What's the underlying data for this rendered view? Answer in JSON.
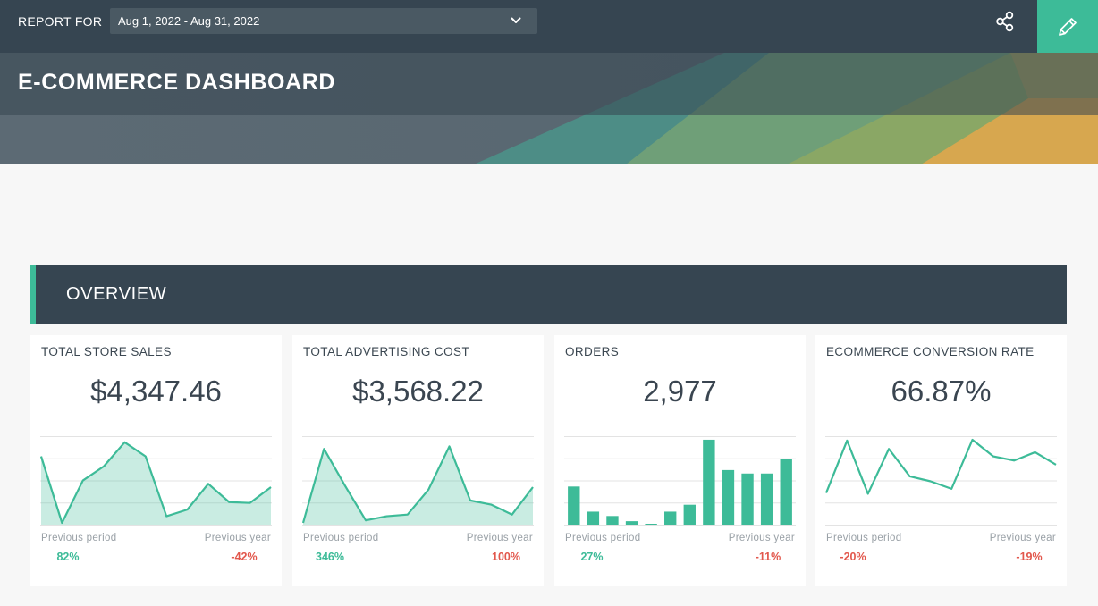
{
  "header": {
    "report_for_label": "REPORT FOR",
    "date_range": "Aug 1, 2022 - Aug 31, 2022",
    "title": "E-COMMERCE DASHBOARD",
    "share_icon": "share-icon",
    "edit_icon": "pencil-icon"
  },
  "colors": {
    "topbar": "#364551",
    "accent": "#3dbb98",
    "positive": "#3dbb98",
    "negative": "#e2574c",
    "band_teal": "#4b9a8a",
    "band_green": "#8aa765",
    "band_orange": "#d9a84f"
  },
  "overview": {
    "label": "OVERVIEW"
  },
  "cards": [
    {
      "title": "TOTAL STORE SALES",
      "value": "$4,347.46",
      "chart": {
        "type": "area",
        "values": [
          0.8,
          0.0,
          0.51,
          0.68,
          0.97,
          0.8,
          0.08,
          0.16,
          0.47,
          0.25,
          0.24,
          0.43
        ]
      },
      "previous_period_label": "Previous period",
      "previous_period_change": "82%",
      "previous_period_trend": "pos",
      "previous_year_label": "Previous year",
      "previous_year_change": "-42%",
      "previous_year_trend": "neg"
    },
    {
      "title": "TOTAL ADVERTISING COST",
      "value": "$3,568.22",
      "chart": {
        "type": "area",
        "values": [
          0.0,
          0.89,
          0.45,
          0.03,
          0.08,
          0.1,
          0.4,
          0.92,
          0.27,
          0.22,
          0.1,
          0.43
        ]
      },
      "previous_period_label": "Previous period",
      "previous_period_change": "346%",
      "previous_period_trend": "pos",
      "previous_year_label": "Previous year",
      "previous_year_change": "100%",
      "previous_year_trend": "neg"
    },
    {
      "title": "ORDERS",
      "value": "2,977",
      "chart": {
        "type": "bar",
        "values": [
          0.44,
          0.15,
          0.1,
          0.04,
          0.01,
          0.15,
          0.23,
          0.98,
          0.63,
          0.59,
          0.59,
          0.76
        ]
      },
      "previous_period_label": "Previous period",
      "previous_period_change": "27%",
      "previous_period_trend": "pos",
      "previous_year_label": "Previous year",
      "previous_year_change": "-11%",
      "previous_year_trend": "neg"
    },
    {
      "title": "ECOMMERCE CONVERSION RATE",
      "value": "66.87%",
      "chart": {
        "type": "line",
        "values": [
          0.36,
          0.99,
          0.35,
          0.89,
          0.56,
          0.5,
          0.41,
          1.0,
          0.8,
          0.75,
          0.85,
          0.7
        ]
      },
      "previous_period_label": "Previous period",
      "previous_period_change": "-20%",
      "previous_period_trend": "neg",
      "previous_year_label": "Previous year",
      "previous_year_change": "-19%",
      "previous_year_trend": "neg"
    }
  ]
}
